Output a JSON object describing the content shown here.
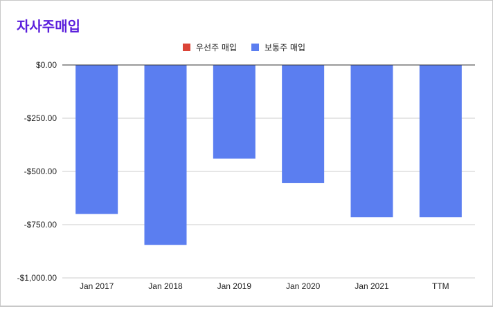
{
  "chart_data": {
    "type": "bar",
    "title": "자사주매입",
    "categories": [
      "Jan 2017",
      "Jan 2018",
      "Jan 2019",
      "Jan 2020",
      "Jan 2021",
      "TTM"
    ],
    "series": [
      {
        "name": "우선주 매입",
        "color": "#db4437",
        "values": [
          0,
          0,
          0,
          0,
          0,
          0
        ]
      },
      {
        "name": "보통주 매입",
        "color": "#5b7ef0",
        "values": [
          -700,
          -845,
          -440,
          -555,
          -715,
          -715
        ]
      }
    ],
    "y_ticks": [
      0,
      -250,
      -500,
      -750,
      -1000
    ],
    "y_tick_labels": [
      "$0.00",
      "-$250.00",
      "-$500.00",
      "-$750.00",
      "-$1,000.00"
    ],
    "ylim": [
      -1000,
      0
    ],
    "grid": true,
    "legend_position": "top"
  }
}
